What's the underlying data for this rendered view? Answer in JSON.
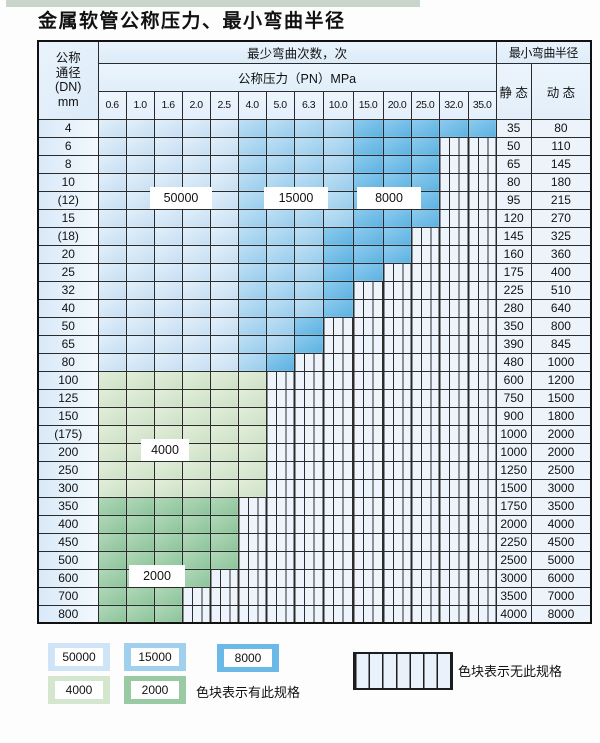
{
  "page": {
    "title": "金属软管公称压力、最小弯曲半径"
  },
  "table": {
    "header": {
      "dn_label_lines": [
        "公称",
        "通径",
        "(DN)",
        "mm"
      ],
      "cycles_label": "最少弯曲次数，次",
      "pressure_label": "公称压力（PN）MPa",
      "pressure_values": [
        "0.6",
        "1.0",
        "1.6",
        "2.0",
        "2.5",
        "4.0",
        "5.0",
        "6.3",
        "10.0",
        "15.0",
        "20.0",
        "25.0",
        "32.0",
        "35.0"
      ],
      "radius_label": "最小弯曲半径",
      "static_label": "静 态",
      "dynamic_label": "动 态"
    },
    "bands": {
      "b1": "50000",
      "b2": "15000",
      "b3": "8000",
      "g1": "4000",
      "g2": "2000",
      "x": "无此规格"
    },
    "band_order": [
      "b1",
      "b2",
      "b3",
      "g1",
      "g2",
      "x"
    ],
    "rows": [
      {
        "dn": "4",
        "bands": {
          "b1": 5,
          "b2": 4,
          "b3": 5
        },
        "static": "35",
        "dynamic": "80"
      },
      {
        "dn": "6",
        "bands": {
          "b1": 5,
          "b2": 4,
          "b3": 3,
          "x": 2
        },
        "static": "50",
        "dynamic": "110"
      },
      {
        "dn": "8",
        "bands": {
          "b1": 5,
          "b2": 4,
          "b3": 3,
          "x": 2
        },
        "static": "65",
        "dynamic": "145"
      },
      {
        "dn": "10",
        "bands": {
          "b1": 5,
          "b2": 4,
          "b3": 3,
          "x": 2
        },
        "static": "80",
        "dynamic": "180"
      },
      {
        "dn": "(12)",
        "bands": {
          "b1": 5,
          "b2": 4,
          "b3": 3,
          "x": 2
        },
        "static": "95",
        "dynamic": "215"
      },
      {
        "dn": "15",
        "bands": {
          "b1": 5,
          "b2": 4,
          "b3": 3,
          "x": 2
        },
        "static": "120",
        "dynamic": "270"
      },
      {
        "dn": "(18)",
        "bands": {
          "b1": 5,
          "b2": 3,
          "b3": 3,
          "x": 3
        },
        "static": "145",
        "dynamic": "325"
      },
      {
        "dn": "20",
        "bands": {
          "b1": 5,
          "b2": 3,
          "b3": 3,
          "x": 3
        },
        "static": "160",
        "dynamic": "360"
      },
      {
        "dn": "25",
        "bands": {
          "b1": 5,
          "b2": 3,
          "b3": 2,
          "x": 4
        },
        "static": "175",
        "dynamic": "400"
      },
      {
        "dn": "32",
        "bands": {
          "b1": 5,
          "b2": 3,
          "b3": 1,
          "x": 5
        },
        "static": "225",
        "dynamic": "510"
      },
      {
        "dn": "40",
        "bands": {
          "b1": 5,
          "b2": 3,
          "b3": 1,
          "x": 5
        },
        "static": "280",
        "dynamic": "640"
      },
      {
        "dn": "50",
        "bands": {
          "b1": 5,
          "b2": 2,
          "b3": 1,
          "x": 6
        },
        "static": "350",
        "dynamic": "800"
      },
      {
        "dn": "65",
        "bands": {
          "b1": 5,
          "b2": 2,
          "b3": 1,
          "x": 6
        },
        "static": "390",
        "dynamic": "845"
      },
      {
        "dn": "80",
        "bands": {
          "b1": 5,
          "b2": 1,
          "b3": 1,
          "x": 7
        },
        "static": "480",
        "dynamic": "1000"
      },
      {
        "dn": "100",
        "bands": {
          "g1": 6,
          "x": 8
        },
        "static": "600",
        "dynamic": "1200"
      },
      {
        "dn": "125",
        "bands": {
          "g1": 6,
          "x": 8
        },
        "static": "750",
        "dynamic": "1500"
      },
      {
        "dn": "150",
        "bands": {
          "g1": 6,
          "x": 8
        },
        "static": "900",
        "dynamic": "1800"
      },
      {
        "dn": "(175)",
        "bands": {
          "g1": 6,
          "x": 8
        },
        "static": "1000",
        "dynamic": "2000"
      },
      {
        "dn": "200",
        "bands": {
          "g1": 6,
          "x": 8
        },
        "static": "1000",
        "dynamic": "2000"
      },
      {
        "dn": "250",
        "bands": {
          "g1": 6,
          "x": 8
        },
        "static": "1250",
        "dynamic": "2500"
      },
      {
        "dn": "300",
        "bands": {
          "g1": 6,
          "x": 8
        },
        "static": "1500",
        "dynamic": "3000"
      },
      {
        "dn": "350",
        "bands": {
          "g2": 5,
          "x": 9
        },
        "static": "1750",
        "dynamic": "3500"
      },
      {
        "dn": "400",
        "bands": {
          "g2": 5,
          "x": 9
        },
        "static": "2000",
        "dynamic": "4000"
      },
      {
        "dn": "450",
        "bands": {
          "g2": 5,
          "x": 9
        },
        "static": "2250",
        "dynamic": "4500"
      },
      {
        "dn": "500",
        "bands": {
          "g2": 5,
          "x": 9
        },
        "static": "2500",
        "dynamic": "5000"
      },
      {
        "dn": "600",
        "bands": {
          "g2": 4,
          "x": 10
        },
        "static": "3000",
        "dynamic": "6000"
      },
      {
        "dn": "700",
        "bands": {
          "g2": 3,
          "x": 11
        },
        "static": "3500",
        "dynamic": "7000"
      },
      {
        "dn": "800",
        "bands": {
          "g2": 3,
          "x": 11
        },
        "static": "4000",
        "dynamic": "8000"
      }
    ]
  },
  "overlays": {
    "l50000": "50000",
    "l15000": "15000",
    "l8000": "8000",
    "l4000": "4000",
    "l2000": "2000"
  },
  "legend": {
    "items": [
      {
        "value": "50000",
        "band": "b1"
      },
      {
        "value": "15000",
        "band": "b2"
      },
      {
        "value": "8000",
        "band": "b3"
      },
      {
        "value": "4000",
        "band": "g1"
      },
      {
        "value": "2000",
        "band": "g2"
      }
    ],
    "has_spec_label": "色块表示有此规格",
    "no_spec_label": "色块表示无此规格"
  },
  "colors": {
    "band_50000": "#cfe4f6",
    "band_15000": "#a0d0ee",
    "band_8000": "#6ab9e6",
    "band_4000": "#d5e6cf",
    "band_2000": "#9acaa3",
    "hatch_bg": "#edf4fb",
    "grid_line": "#2b2b2b"
  }
}
